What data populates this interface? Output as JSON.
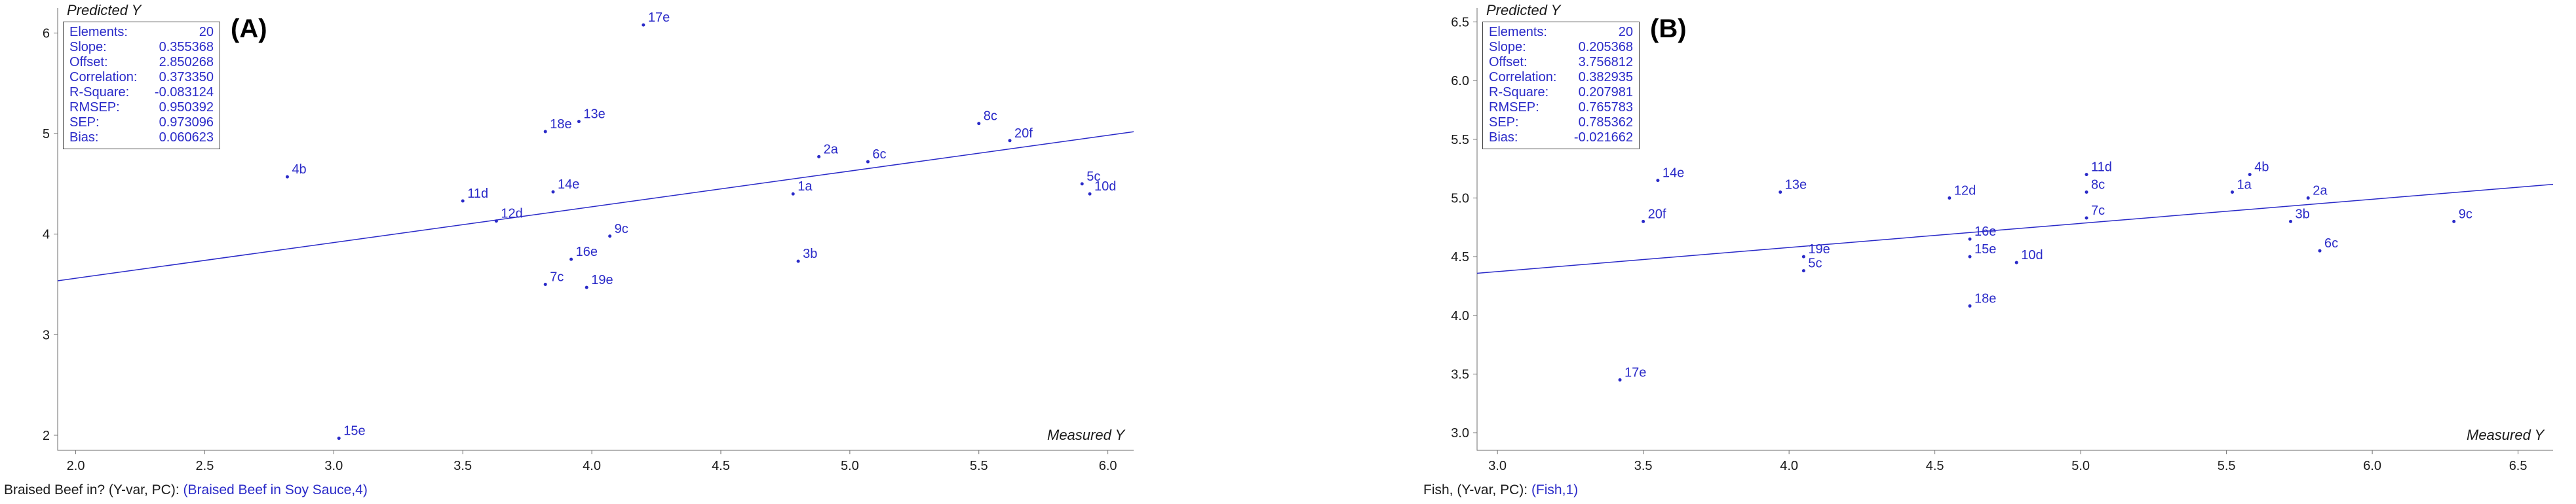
{
  "figure": {
    "background": "#ffffff",
    "point_color": "#2a2ac8",
    "line_color": "#2a2ac8",
    "stats_color": "#2a2ac8",
    "axis_color": "#6e6e6e",
    "text_color": "#1a1a1a",
    "link_color": "#2a2ac8"
  },
  "chart_data": [
    {
      "type": "scatter",
      "panel_label": "(A)",
      "ylabel": "Predicted Y",
      "xlabel": "Measured Y",
      "xlim": [
        1.93,
        6.1
      ],
      "ylim": [
        1.85,
        6.25
      ],
      "xticks": [
        "2.0",
        "2.5",
        "3.0",
        "3.5",
        "4.0",
        "4.5",
        "5.0",
        "5.5",
        "6.0"
      ],
      "yticks": [
        "2",
        "3",
        "4",
        "5",
        "6"
      ],
      "regression": {
        "slope": 0.355368,
        "offset": 2.850268
      },
      "legend_position": "none",
      "grid": false,
      "stats": [
        {
          "label": "Elements:",
          "value": "20"
        },
        {
          "label": "Slope:",
          "value": "0.355368"
        },
        {
          "label": "Offset:",
          "value": "2.850268"
        },
        {
          "label": "Correlation:",
          "value": "0.373350"
        },
        {
          "label": "R-Square:",
          "value": "-0.083124"
        },
        {
          "label": "RMSEP:",
          "value": "0.950392"
        },
        {
          "label": "SEP:",
          "value": "0.973096"
        },
        {
          "label": "Bias:",
          "value": "0.060623"
        }
      ],
      "points": [
        {
          "label": "17e",
          "x": 4.2,
          "y": 6.08
        },
        {
          "label": "13e",
          "x": 3.95,
          "y": 5.12
        },
        {
          "label": "18e",
          "x": 3.82,
          "y": 5.02
        },
        {
          "label": "8c",
          "x": 5.5,
          "y": 5.1
        },
        {
          "label": "20f",
          "x": 5.62,
          "y": 4.93
        },
        {
          "label": "2a",
          "x": 4.88,
          "y": 4.77
        },
        {
          "label": "6c",
          "x": 5.07,
          "y": 4.72
        },
        {
          "label": "4b",
          "x": 2.82,
          "y": 4.57
        },
        {
          "label": "14e",
          "x": 3.85,
          "y": 4.42
        },
        {
          "label": "11d",
          "x": 3.5,
          "y": 4.33
        },
        {
          "label": "1a",
          "x": 4.78,
          "y": 4.4
        },
        {
          "label": "5c",
          "x": 5.9,
          "y": 4.5
        },
        {
          "label": "10d",
          "x": 5.93,
          "y": 4.4
        },
        {
          "label": "12d",
          "x": 3.63,
          "y": 4.13
        },
        {
          "label": "9c",
          "x": 4.07,
          "y": 3.98
        },
        {
          "label": "16e",
          "x": 3.92,
          "y": 3.75
        },
        {
          "label": "3b",
          "x": 4.8,
          "y": 3.73
        },
        {
          "label": "7c",
          "x": 3.82,
          "y": 3.5
        },
        {
          "label": "19e",
          "x": 3.98,
          "y": 3.47
        },
        {
          "label": "15e",
          "x": 3.02,
          "y": 1.97
        }
      ],
      "footer_plain": "Braised Beef in? (Y-var, PC): ",
      "footer_link": "(Braised Beef in Soy Sauce,4)"
    },
    {
      "type": "scatter",
      "panel_label": "(B)",
      "ylabel": "Predicted Y",
      "xlabel": "Measured Y",
      "xlim": [
        2.93,
        6.62
      ],
      "ylim": [
        2.85,
        6.62
      ],
      "xticks": [
        "3.0",
        "3.5",
        "4.0",
        "4.5",
        "5.0",
        "5.5",
        "6.0",
        "6.5"
      ],
      "yticks": [
        "3.0",
        "3.5",
        "4.0",
        "4.5",
        "5.0",
        "5.5",
        "6.0",
        "6.5"
      ],
      "regression": {
        "slope": 0.205368,
        "offset": 3.756812
      },
      "legend_position": "none",
      "grid": false,
      "stats": [
        {
          "label": "Elements:",
          "value": "20"
        },
        {
          "label": "Slope:",
          "value": "0.205368"
        },
        {
          "label": "Offset:",
          "value": "3.756812"
        },
        {
          "label": "Correlation:",
          "value": "0.382935"
        },
        {
          "label": "R-Square:",
          "value": "0.207981"
        },
        {
          "label": "RMSEP:",
          "value": "0.765783"
        },
        {
          "label": "SEP:",
          "value": "0.785362"
        },
        {
          "label": "Bias:",
          "value": "-0.021662"
        }
      ],
      "points": [
        {
          "label": "14e",
          "x": 3.55,
          "y": 5.15
        },
        {
          "label": "11d",
          "x": 5.02,
          "y": 5.2
        },
        {
          "label": "4b",
          "x": 5.58,
          "y": 5.2
        },
        {
          "label": "13e",
          "x": 3.97,
          "y": 5.05
        },
        {
          "label": "12d",
          "x": 4.55,
          "y": 5.0
        },
        {
          "label": "8c",
          "x": 5.02,
          "y": 5.05
        },
        {
          "label": "1a",
          "x": 5.52,
          "y": 5.05
        },
        {
          "label": "2a",
          "x": 5.78,
          "y": 5.0
        },
        {
          "label": "7c",
          "x": 5.02,
          "y": 4.83
        },
        {
          "label": "3b",
          "x": 5.72,
          "y": 4.8
        },
        {
          "label": "9c",
          "x": 6.28,
          "y": 4.8
        },
        {
          "label": "20f",
          "x": 3.5,
          "y": 4.8
        },
        {
          "label": "16e",
          "x": 4.62,
          "y": 4.65
        },
        {
          "label": "15e",
          "x": 4.62,
          "y": 4.5
        },
        {
          "label": "10d",
          "x": 4.78,
          "y": 4.45
        },
        {
          "label": "6c",
          "x": 5.82,
          "y": 4.55
        },
        {
          "label": "19e",
          "x": 4.05,
          "y": 4.5
        },
        {
          "label": "5c",
          "x": 4.05,
          "y": 4.38
        },
        {
          "label": "18e",
          "x": 4.62,
          "y": 4.08
        },
        {
          "label": "17e",
          "x": 3.42,
          "y": 3.45
        }
      ],
      "footer_plain": "Fish, (Y-var, PC): ",
      "footer_link": "(Fish,1)"
    }
  ]
}
